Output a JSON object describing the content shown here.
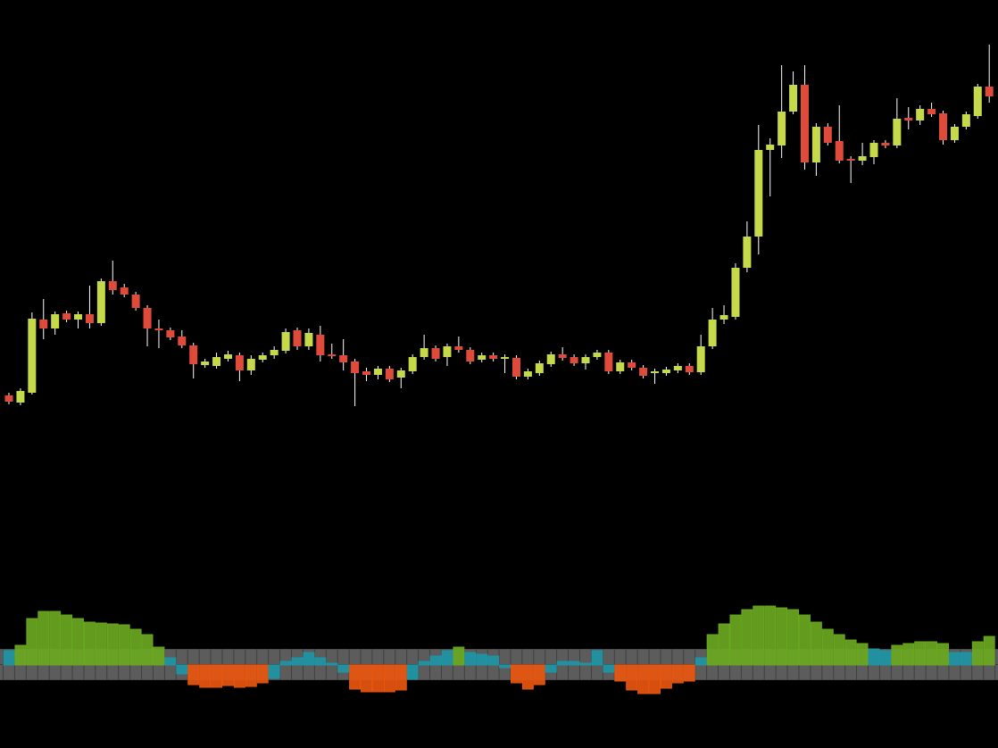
{
  "chart_data": [
    {
      "type": "candlestick",
      "up_color": "#c5d94a",
      "down_color": "#e04a3a",
      "ylim": [
        0,
        600
      ],
      "open": [
        157,
        149,
        160,
        242,
        232,
        249,
        242,
        248,
        238,
        285,
        278,
        270,
        255,
        232,
        230,
        223,
        213,
        191,
        190,
        198,
        202,
        185,
        197,
        202,
        207,
        230,
        212,
        225,
        203,
        202,
        195,
        184,
        180,
        187,
        177,
        184,
        200,
        210,
        200,
        212,
        208,
        197,
        202,
        198,
        199,
        178,
        182,
        192,
        203,
        200,
        193,
        200,
        205,
        184,
        194,
        188,
        182,
        182,
        185,
        190,
        183,
        212,
        242,
        245,
        300,
        335,
        432,
        437,
        475,
        505,
        418,
        458,
        442,
        422,
        420,
        424,
        440,
        437,
        468,
        465,
        478,
        473,
        443,
        458,
        470,
        503
      ],
      "high": [
        160,
        165,
        250,
        265,
        251,
        252,
        251,
        280,
        288,
        308,
        282,
        273,
        258,
        242,
        233,
        230,
        216,
        198,
        205,
        207,
        205,
        202,
        205,
        212,
        232,
        233,
        232,
        235,
        215,
        220,
        198,
        188,
        190,
        190,
        188,
        203,
        225,
        213,
        215,
        223,
        211,
        205,
        205,
        203,
        202,
        187,
        196,
        206,
        211,
        203,
        203,
        208,
        208,
        197,
        197,
        191,
        187,
        189,
        193,
        193,
        225,
        255,
        258,
        305,
        352,
        460,
        445,
        527,
        520,
        527,
        462,
        462,
        482,
        425,
        440,
        443,
        443,
        490,
        480,
        482,
        485,
        476,
        461,
        475,
        506,
        550
      ],
      "low": [
        147,
        146,
        158,
        220,
        225,
        239,
        232,
        232,
        235,
        270,
        267,
        252,
        212,
        210,
        219,
        210,
        176,
        188,
        187,
        195,
        173,
        180,
        194,
        198,
        204,
        208,
        208,
        195,
        198,
        185,
        145,
        173,
        175,
        172,
        165,
        181,
        197,
        195,
        190,
        205,
        192,
        194,
        195,
        182,
        175,
        175,
        179,
        189,
        196,
        190,
        186,
        197,
        181,
        181,
        185,
        176,
        170,
        179,
        182,
        180,
        180,
        209,
        237,
        242,
        295,
        315,
        380,
        423,
        472,
        410,
        403,
        437,
        417,
        395,
        415,
        416,
        434,
        434,
        455,
        460,
        469,
        438,
        440,
        455,
        467,
        485
      ],
      "close": [
        150,
        162,
        243,
        232,
        248,
        242,
        248,
        238,
        285,
        275,
        270,
        255,
        232,
        230,
        222,
        213,
        192,
        195,
        200,
        203,
        185,
        198,
        202,
        208,
        228,
        212,
        227,
        202,
        201,
        194,
        182,
        180,
        187,
        175,
        185,
        200,
        210,
        198,
        212,
        208,
        195,
        202,
        198,
        200,
        178,
        184,
        193,
        203,
        199,
        193,
        200,
        205,
        184,
        194,
        188,
        179,
        184,
        186,
        190,
        183,
        212,
        242,
        247,
        300,
        335,
        432,
        438,
        475,
        505,
        418,
        458,
        440,
        420,
        420,
        425,
        440,
        437,
        467,
        465,
        478,
        472,
        443,
        458,
        472,
        503,
        492
      ]
    },
    {
      "type": "histogram",
      "ylim": [
        -93,
        93
      ],
      "values": [
        16,
        22,
        52,
        60,
        60,
        56,
        52,
        48,
        47,
        46,
        45,
        40,
        34,
        20,
        8,
        -10,
        -22,
        -25,
        -25,
        -23,
        -25,
        -24,
        -20,
        -15,
        4,
        8,
        14,
        8,
        2,
        -8,
        -27,
        -30,
        -30,
        -30,
        -28,
        -16,
        4,
        10,
        16,
        20,
        14,
        12,
        10,
        -3,
        -20,
        -27,
        -22,
        -8,
        4,
        4,
        2,
        16,
        -8,
        -18,
        -28,
        -32,
        -32,
        -26,
        -20,
        -18,
        8,
        34,
        46,
        56,
        62,
        66,
        66,
        64,
        62,
        56,
        48,
        40,
        34,
        28,
        24,
        18,
        16,
        22,
        24,
        26,
        26,
        24,
        14,
        14,
        26,
        32
      ],
      "bar_colors": [
        "#1e95a5",
        "#6aa820",
        "#6aa820",
        "#6aa820",
        "#6aa820",
        "#6aa820",
        "#6aa820",
        "#6aa820",
        "#6aa820",
        "#6aa820",
        "#6aa820",
        "#6aa820",
        "#6aa820",
        "#6aa820",
        "#1e95a5",
        "#1e95a5",
        "#e8560f",
        "#e8560f",
        "#e8560f",
        "#e8560f",
        "#e8560f",
        "#e8560f",
        "#e8560f",
        "#1e95a5",
        "#1e95a5",
        "#1e95a5",
        "#1e95a5",
        "#1e95a5",
        "#1e95a5",
        "#1e95a5",
        "#e8560f",
        "#e8560f",
        "#e8560f",
        "#e8560f",
        "#e8560f",
        "#1e95a5",
        "#1e95a5",
        "#1e95a5",
        "#1e95a5",
        "#6aa820",
        "#1e95a5",
        "#1e95a5",
        "#1e95a5",
        "#1e95a5",
        "#e8560f",
        "#e8560f",
        "#e8560f",
        "#1e95a5",
        "#1e95a5",
        "#1e95a5",
        "#1e95a5",
        "#1e95a5",
        "#1e95a5",
        "#e8560f",
        "#e8560f",
        "#e8560f",
        "#e8560f",
        "#e8560f",
        "#e8560f",
        "#e8560f",
        "#1e95a5",
        "#6aa820",
        "#6aa820",
        "#6aa820",
        "#6aa820",
        "#6aa820",
        "#6aa820",
        "#6aa820",
        "#6aa820",
        "#6aa820",
        "#6aa820",
        "#6aa820",
        "#6aa820",
        "#6aa820",
        "#6aa820",
        "#1e95a5",
        "#1e95a5",
        "#6aa820",
        "#6aa820",
        "#6aa820",
        "#6aa820",
        "#6aa820",
        "#1e95a5",
        "#1e95a5",
        "#6aa820",
        "#6aa820"
      ]
    }
  ]
}
